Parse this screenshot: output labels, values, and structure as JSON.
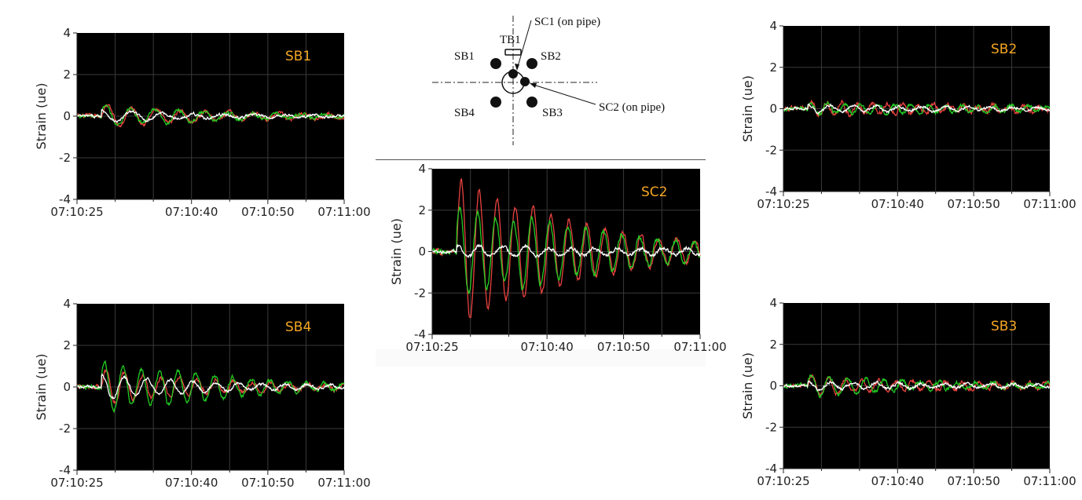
{
  "diagram": {
    "labels": {
      "sb1": "SB1",
      "sb2": "SB2",
      "sb3": "SB3",
      "sb4": "SB4",
      "tb1": "TB1",
      "sc1": "SC1 (on pipe)",
      "sc2": "SC2 (on pipe)"
    }
  },
  "colors": {
    "series1": "#e8423f",
    "series2": "#22cc22",
    "series3": "#ffffff",
    "plot_bg": "#000000",
    "label": "#f5a623"
  },
  "chart_data": [
    {
      "id": "SB1",
      "type": "line",
      "label": "SB1",
      "ylabel": "Strain (ue)",
      "ylim": [
        -4,
        4
      ],
      "yticks": [
        "4",
        "2",
        "0",
        "-2",
        "-4"
      ],
      "xticks": [
        "07:10:25",
        "07:10:40",
        "07:10:50",
        "07:11:00"
      ],
      "series": [
        {
          "color": "red",
          "amp": [
            0.55,
            0.35,
            0.2,
            0.15
          ],
          "decay": 0.12,
          "period": 3.2,
          "noise": 0.12
        },
        {
          "color": "green",
          "amp": [
            0.5,
            0.35,
            0.2,
            0.12
          ],
          "decay": 0.12,
          "period": 3.2,
          "noise": 0.1
        },
        {
          "color": "white",
          "amp": [
            0.3,
            0.15,
            0.1,
            0.08
          ],
          "decay": 0.1,
          "period": 4.0,
          "noise": 0.08
        }
      ]
    },
    {
      "id": "SB2",
      "type": "line",
      "label": "SB2",
      "ylabel": "Strain (ue)",
      "ylim": [
        -4,
        4
      ],
      "yticks": [
        "4",
        "2",
        "0",
        "-2",
        "-4"
      ],
      "xticks": [
        "07:10:25",
        "07:10:40",
        "07:10:50",
        "07:11:00"
      ],
      "series": [
        {
          "color": "red",
          "amp": [
            0.35,
            0.25,
            0.2,
            0.18
          ],
          "decay": 0.05,
          "period": 2.0,
          "noise": 0.15
        },
        {
          "color": "green",
          "amp": [
            0.3,
            0.25,
            0.2,
            0.15
          ],
          "decay": 0.05,
          "period": 2.2,
          "noise": 0.12
        },
        {
          "color": "white",
          "amp": [
            0.2,
            0.15,
            0.12,
            0.1
          ],
          "decay": 0.05,
          "period": 3.0,
          "noise": 0.08
        }
      ]
    },
    {
      "id": "SC2",
      "type": "line",
      "label": "SC2",
      "ylabel": "Strain (ue)",
      "ylim": [
        -4,
        4
      ],
      "yticks": [
        "4",
        "2",
        "0",
        "-2",
        "-4"
      ],
      "xticks": [
        "07:10:25",
        "07:10:40",
        "07:10:50",
        "07:11:00"
      ],
      "series": [
        {
          "color": "red",
          "amp": [
            3.6,
            2.4,
            1.4,
            0.8
          ],
          "decay": 0.08,
          "period": 2.35,
          "noise": 0.15
        },
        {
          "color": "green",
          "amp": [
            2.2,
            1.9,
            1.2,
            0.7
          ],
          "decay": 0.07,
          "period": 2.35,
          "noise": 0.15
        },
        {
          "color": "white",
          "amp": [
            0.3,
            0.25,
            0.2,
            0.2
          ],
          "decay": 0.02,
          "period": 3.0,
          "noise": 0.1
        }
      ]
    },
    {
      "id": "SB4",
      "type": "line",
      "label": "SB4",
      "ylabel": "Strain (ue)",
      "ylim": [
        -4,
        4
      ],
      "yticks": [
        "4",
        "2",
        "0",
        "-2",
        "-4"
      ],
      "xticks": [
        "07:10:25",
        "07:10:40",
        "07:10:50",
        "07:11:00"
      ],
      "series": [
        {
          "color": "red",
          "amp": [
            0.8,
            0.5,
            0.3,
            0.2
          ],
          "decay": 0.09,
          "period": 2.4,
          "noise": 0.12
        },
        {
          "color": "green",
          "amp": [
            1.2,
            0.9,
            0.5,
            0.25
          ],
          "decay": 0.09,
          "period": 2.4,
          "noise": 0.12
        },
        {
          "color": "white",
          "amp": [
            0.6,
            0.35,
            0.2,
            0.15
          ],
          "decay": 0.1,
          "period": 3.0,
          "noise": 0.08
        }
      ]
    },
    {
      "id": "SB3",
      "type": "line",
      "label": "SB3",
      "ylabel": "Strain (ue)",
      "ylim": [
        -4,
        4
      ],
      "yticks": [
        "4",
        "2",
        "0",
        "-2",
        "-4"
      ],
      "xticks": [
        "07:10:25",
        "07:10:40",
        "07:10:50",
        "07:11:00"
      ],
      "series": [
        {
          "color": "red",
          "amp": [
            0.45,
            0.3,
            0.25,
            0.2
          ],
          "decay": 0.06,
          "period": 2.2,
          "noise": 0.12
        },
        {
          "color": "green",
          "amp": [
            0.55,
            0.3,
            0.2,
            0.15
          ],
          "decay": 0.08,
          "period": 2.4,
          "noise": 0.12
        },
        {
          "color": "white",
          "amp": [
            0.2,
            0.15,
            0.12,
            0.1
          ],
          "decay": 0.05,
          "period": 3.0,
          "noise": 0.08
        }
      ]
    }
  ]
}
